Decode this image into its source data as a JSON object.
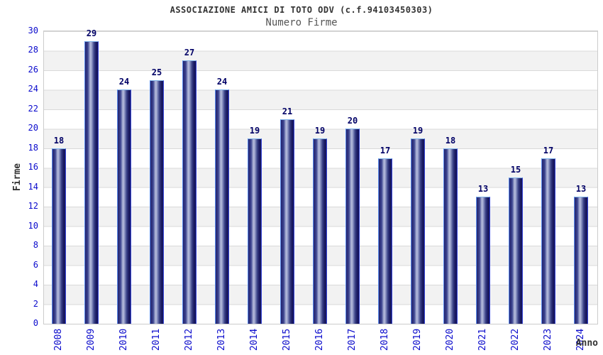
{
  "chart_data": {
    "type": "bar",
    "title": "ASSOCIAZIONE AMICI DI TOTO ODV (c.f.94103450303)",
    "subtitle": "Numero Firme",
    "xlabel": "Anno",
    "ylabel": "Firme",
    "categories": [
      "2008",
      "2009",
      "2010",
      "2011",
      "2012",
      "2013",
      "2014",
      "2015",
      "2016",
      "2017",
      "2018",
      "2019",
      "2020",
      "2021",
      "2022",
      "2023",
      "2024"
    ],
    "values": [
      18,
      29,
      24,
      25,
      27,
      24,
      19,
      21,
      19,
      20,
      17,
      19,
      18,
      13,
      15,
      17,
      13
    ],
    "ylim": [
      0,
      30
    ],
    "ytick_step": 2,
    "grid": "horizontal",
    "legend_position": "none",
    "theme": {
      "tick_color": "#0a0acc",
      "value_label_color": "#000066",
      "title_color": "#333333",
      "subtitle_color": "#555555",
      "axis_label_color": "#333333",
      "grid_color": "#d9d9d9",
      "band_color": "#f2f2f2",
      "plot_border_color": "#cccccc",
      "bar_dark": "#14145a",
      "bar_highlight": "#b8bedd",
      "bar_edge_left": "#5b8dee",
      "bar_edge_right": "#3746d8",
      "bar_cap": "#7fb2e8"
    }
  }
}
